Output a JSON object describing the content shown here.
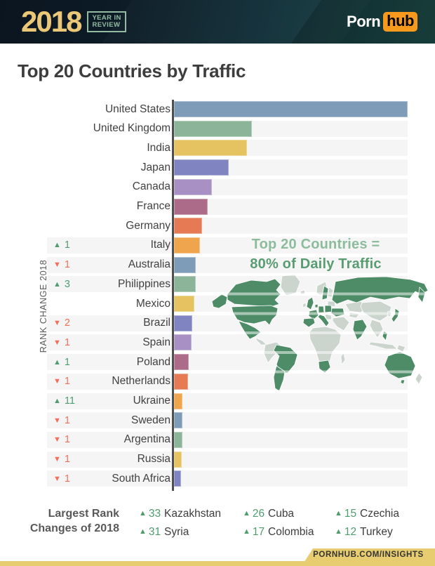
{
  "header": {
    "year": "2018",
    "review_line1": "YEAR IN",
    "review_line2": "REVIEW",
    "logo_porn": "Porn",
    "logo_hub": "hub"
  },
  "title": "Top 20 Countries by Traffic",
  "chart_data": {
    "type": "bar",
    "orientation": "horizontal",
    "title": "Top 20 Countries by Traffic",
    "left_axis_label": "RANK CHANGE 2018",
    "categories": [
      "United States",
      "United Kingdom",
      "India",
      "Japan",
      "Canada",
      "France",
      "Germany",
      "Italy",
      "Australia",
      "Philippines",
      "Mexico",
      "Brazil",
      "Spain",
      "Poland",
      "Netherlands",
      "Ukraine",
      "Sweden",
      "Argentina",
      "Russia",
      "South Africa"
    ],
    "values": [
      100,
      33.3,
      31.2,
      23.4,
      16.2,
      14.4,
      12.0,
      11.1,
      9.3,
      9.3,
      8.7,
      7.8,
      7.5,
      6.3,
      6.0,
      3.6,
      3.6,
      3.6,
      3.3,
      3.0
    ],
    "unit": "relative bar length, % of United States (no numeric axis shown)",
    "rank_changes": [
      null,
      null,
      null,
      null,
      null,
      null,
      null,
      1,
      -1,
      3,
      null,
      -2,
      -1,
      1,
      -1,
      11,
      -1,
      -1,
      -1,
      -1
    ],
    "bar_colors": [
      "#7E9BB7",
      "#8CB499",
      "#E5C360",
      "#8085C1",
      "#A88FC4",
      "#AC6B88",
      "#E57A55",
      "#EFA54D",
      "#7E9BB7",
      "#8CB499",
      "#E5C360",
      "#8085C1",
      "#A88FC4",
      "#AC6B88",
      "#E57A55",
      "#EFA54D",
      "#7E9BB7",
      "#8CB499",
      "#E5C360",
      "#8085C1"
    ],
    "annotation": "Top 20 Countries = 80% of Daily Traffic",
    "grid": false,
    "legend": false
  },
  "annotation": {
    "line1": "Top 20 Countries =",
    "line2": "80% of Daily Traffic"
  },
  "rank_axis_label": "RANK CHANGE 2018",
  "largest_changes": {
    "label_line1": "Largest Rank",
    "label_line2": "Changes of 2018",
    "entries": [
      {
        "change": 33,
        "country": "Kazakhstan"
      },
      {
        "change": 31,
        "country": "Syria"
      },
      {
        "change": 26,
        "country": "Cuba"
      },
      {
        "change": 17,
        "country": "Colombia"
      },
      {
        "change": 15,
        "country": "Czechia"
      },
      {
        "change": 12,
        "country": "Turkey"
      }
    ]
  },
  "footer": {
    "url": "PORNHUB.COM/INSIGHTS"
  },
  "map": {
    "highlighted_countries": [
      "United States",
      "United Kingdom",
      "India",
      "Japan",
      "Canada",
      "France",
      "Germany",
      "Italy",
      "Australia",
      "Philippines",
      "Mexico",
      "Brazil",
      "Spain",
      "Poland",
      "Netherlands",
      "Ukraine",
      "Sweden",
      "Argentina",
      "Russia",
      "South Africa"
    ]
  },
  "colors": {
    "year_gold": "#EBC878",
    "review_green": "#93BBA2",
    "logo_orange": "#F7991D",
    "title_text": "#3D3D3D",
    "bar_track": "#F5F5F6",
    "axis_line": "#4F4F4F",
    "up_green": "#4F9D6F",
    "down_red": "#F2705B",
    "annotation_green_light": "#8CBC9B",
    "annotation_green_dark": "#5A9C71",
    "map_green": "#4E8C67",
    "map_gray": "#CBD5CE",
    "footer_gold": "#E8CC70",
    "label_text": "#414141",
    "muted_text": "#595959"
  }
}
